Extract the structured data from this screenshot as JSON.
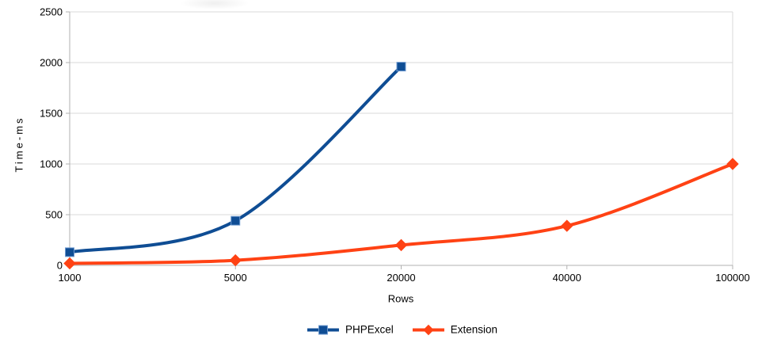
{
  "chart_data": {
    "type": "line",
    "title": "",
    "xlabel": "Rows",
    "ylabel": "Time-ms",
    "categories": [
      "1000",
      "5000",
      "20000",
      "40000",
      "100000"
    ],
    "series": [
      {
        "name": "PHPExcel",
        "values": [
          130,
          440,
          1960,
          null,
          null
        ],
        "color": "#0f4d94",
        "marker": "square",
        "marker_stroke": "#6f9bd1"
      },
      {
        "name": "Extension",
        "values": [
          20,
          50,
          200,
          390,
          1000
        ],
        "color": "#ff4214",
        "marker": "diamond",
        "marker_stroke": "#ff4214"
      }
    ],
    "ylim": [
      0,
      2500
    ],
    "yticks": [
      0,
      500,
      1000,
      1500,
      2000,
      2500
    ],
    "grid": "horizontal",
    "grid_color": "#d9d9d9",
    "axis_color": "#b0b0b0",
    "text_color": "#000000",
    "background": "#ffffff",
    "legend_position": "bottom",
    "line_smoothing": true
  }
}
